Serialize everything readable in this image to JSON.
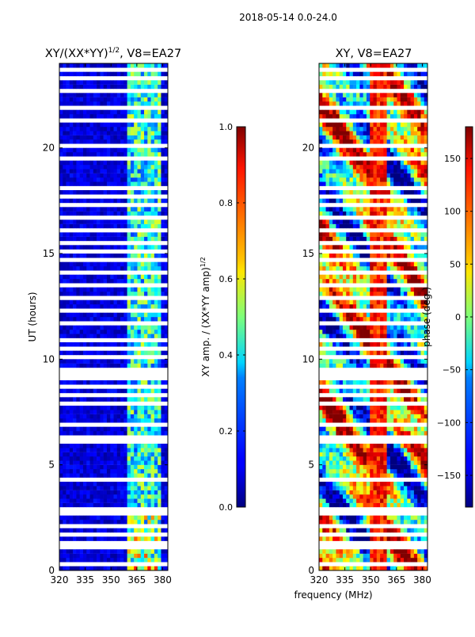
{
  "figure": {
    "suptitle": "2018-05-14 0.0-24.0",
    "xlabel": "frequency (MHz)"
  },
  "chart_data": [
    {
      "type": "heatmap",
      "title_main": "XY/(XX*YY)",
      "title_sup": "1/2",
      "title_tail": ", V8=EA27",
      "ylabel": "UT (hours)",
      "xlim": [
        320,
        383
      ],
      "ylim": [
        0,
        24
      ],
      "x_ticks": [
        320,
        335,
        350,
        365,
        380
      ],
      "y_ticks": [
        0,
        5,
        10,
        15,
        20
      ],
      "colorbar": {
        "label_main": "XY amp. / (XX*YY amp)",
        "label_sup": "1/2",
        "range": [
          0.0,
          1.0
        ],
        "ticks": [
          0.0,
          0.2,
          0.4,
          0.6,
          0.8,
          1.0
        ],
        "tick_labels": [
          "0.0",
          "0.2",
          "0.4",
          "0.6",
          "0.8",
          "1.0"
        ]
      },
      "bright_band_mhz": [
        360,
        380
      ],
      "gap_rows_hours": [
        0.3,
        1.0,
        1.4,
        1.7,
        2.0,
        2.6,
        2.9,
        4.3,
        6.0,
        6.3,
        6.8,
        7.9,
        8.3,
        8.6,
        9.0,
        9.3,
        9.6,
        10.0,
        10.5,
        10.9,
        11.7,
        12.2,
        12.9,
        13.4,
        14.0,
        14.6,
        15.0,
        15.4,
        16.0,
        16.6,
        17.2,
        17.6,
        18.0,
        19.5,
        20.0,
        21.3,
        21.8,
        22.6,
        23.3,
        23.6
      ]
    },
    {
      "type": "heatmap",
      "title": "XY, V8=EA27",
      "ylabel": "",
      "xlim": [
        320,
        383
      ],
      "ylim": [
        0,
        24
      ],
      "x_ticks": [
        320,
        335,
        350,
        365,
        380
      ],
      "y_ticks": [
        0,
        5,
        10,
        15,
        20
      ],
      "colorbar": {
        "label": "phase (deg.)",
        "range": [
          -180,
          180
        ],
        "ticks": [
          -150,
          -100,
          -50,
          0,
          50,
          100,
          150
        ],
        "tick_labels": [
          "−150",
          "−100",
          "−50",
          "0",
          "50",
          "100",
          "150"
        ]
      },
      "gap_rows_hours": [
        0.3,
        1.0,
        1.4,
        1.7,
        2.0,
        2.6,
        2.9,
        4.3,
        6.0,
        6.3,
        6.8,
        7.9,
        8.3,
        8.6,
        9.0,
        9.3,
        9.6,
        10.0,
        10.5,
        10.9,
        11.7,
        12.2,
        12.9,
        13.4,
        14.0,
        14.6,
        15.0,
        15.4,
        16.0,
        16.6,
        17.2,
        17.6,
        18.0,
        19.5,
        20.0,
        21.3,
        21.8,
        22.6,
        23.3,
        23.6
      ]
    }
  ]
}
